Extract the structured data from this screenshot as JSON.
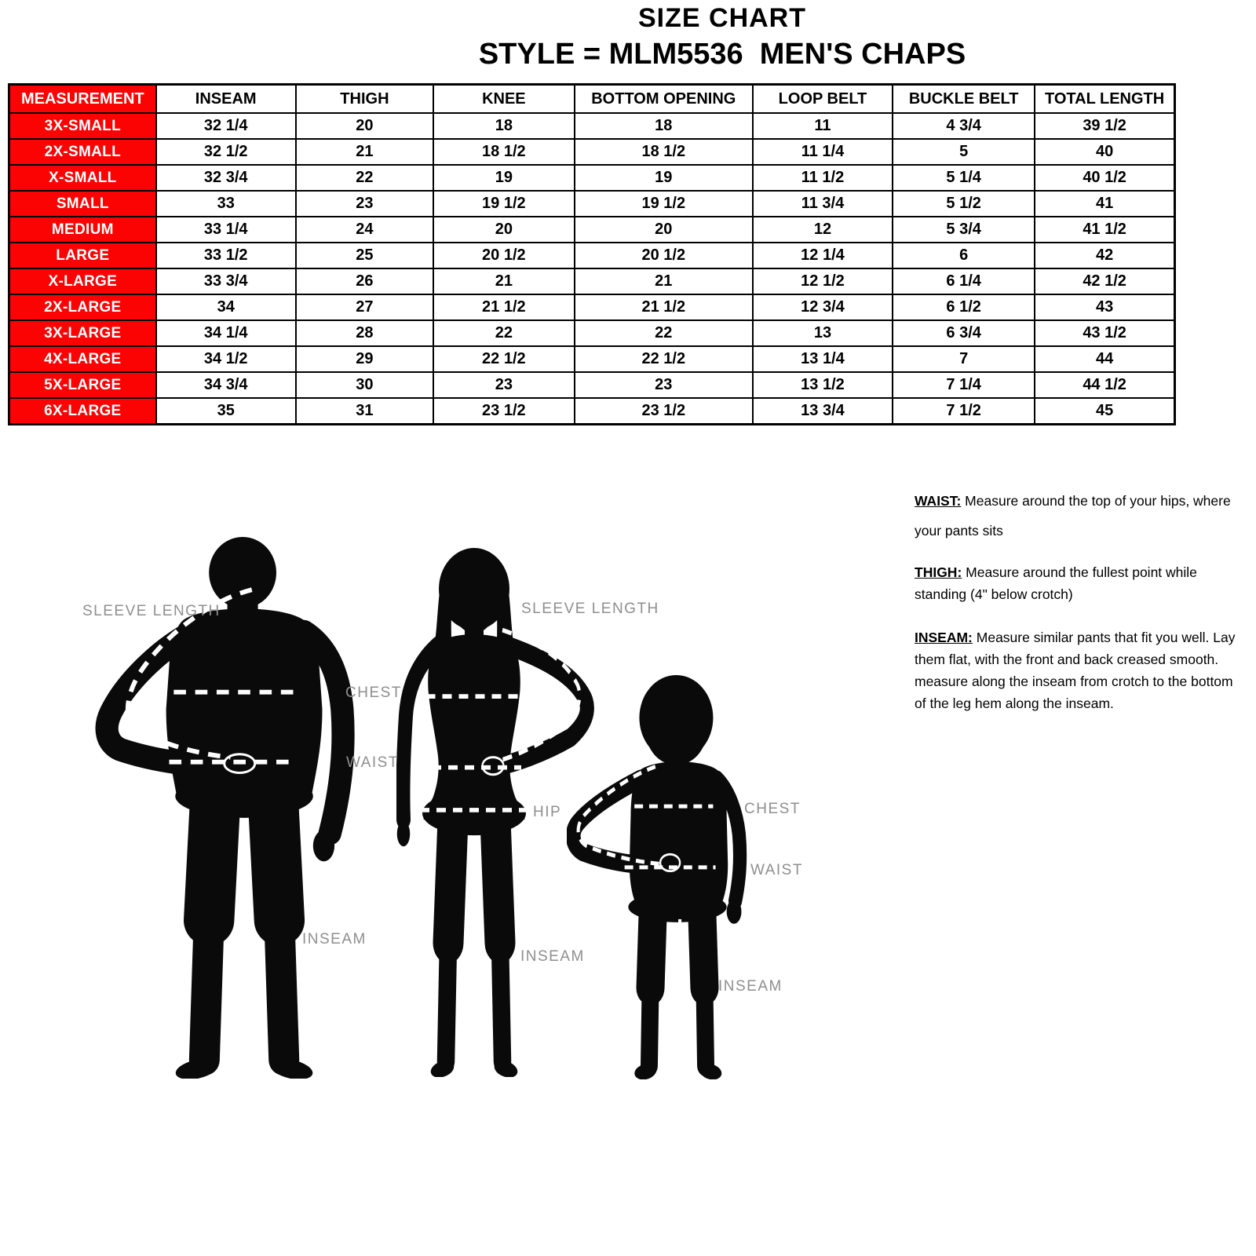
{
  "title": "SIZE CHART",
  "subtitle": "STYLE = MLM5536  MEN'S CHAPS",
  "table": {
    "columns": [
      "MEASUREMENT",
      "INSEAM",
      "THIGH",
      "KNEE",
      "BOTTOM OPENING",
      "LOOP BELT",
      "BUCKLE BELT",
      "TOTAL LENGTH"
    ],
    "rows": [
      {
        "size": "3X-SMALL",
        "values": [
          "32 1/4",
          "20",
          "18",
          "18",
          "11",
          "4 3/4",
          "39 1/2"
        ]
      },
      {
        "size": "2X-SMALL",
        "values": [
          "32 1/2",
          "21",
          "18 1/2",
          "18 1/2",
          "11 1/4",
          "5",
          "40"
        ]
      },
      {
        "size": "X-SMALL",
        "values": [
          "32 3/4",
          "22",
          "19",
          "19",
          "11 1/2",
          "5 1/4",
          "40 1/2"
        ]
      },
      {
        "size": "SMALL",
        "values": [
          "33",
          "23",
          "19 1/2",
          "19 1/2",
          "11 3/4",
          "5 1/2",
          "41"
        ]
      },
      {
        "size": "MEDIUM",
        "values": [
          "33 1/4",
          "24",
          "20",
          "20",
          "12",
          "5 3/4",
          "41 1/2"
        ]
      },
      {
        "size": "LARGE",
        "values": [
          "33 1/2",
          "25",
          "20 1/2",
          "20 1/2",
          "12 1/4",
          "6",
          "42"
        ]
      },
      {
        "size": "X-LARGE",
        "values": [
          "33 3/4",
          "26",
          "21",
          "21",
          "12 1/2",
          "6 1/4",
          "42 1/2"
        ]
      },
      {
        "size": "2X-LARGE",
        "values": [
          "34",
          "27",
          "21 1/2",
          "21 1/2",
          "12 3/4",
          "6 1/2",
          "43"
        ]
      },
      {
        "size": "3X-LARGE",
        "values": [
          "34 1/4",
          "28",
          "22",
          "22",
          "13",
          "6 3/4",
          "43 1/2"
        ]
      },
      {
        "size": "4X-LARGE",
        "values": [
          "34 1/2",
          "29",
          "22 1/2",
          "22 1/2",
          "13 1/4",
          "7",
          "44"
        ]
      },
      {
        "size": "5X-LARGE",
        "values": [
          "34 3/4",
          "30",
          "23",
          "23",
          "13 1/2",
          "7 1/4",
          "44 1/2"
        ]
      },
      {
        "size": "6X-LARGE",
        "values": [
          "35",
          "31",
          "23 1/2",
          "23 1/2",
          "13 3/4",
          "7 1/2",
          "45"
        ]
      }
    ]
  },
  "diagram": {
    "man": {
      "sleeve_label": "SLEEVE LENGTH",
      "chest_label": "CHEST",
      "waist_label": "WAIST",
      "inseam_label": "INSEAM"
    },
    "woman": {
      "sleeve_label": "SLEEVE LENGTH",
      "hip_label": "HIP",
      "inseam_label": "INSEAM"
    },
    "child": {
      "chest_label": "CHEST",
      "waist_label": "WAIST",
      "inseam_label": "INSEAM"
    }
  },
  "instructions": [
    {
      "id": "waist",
      "term": "WAIST:",
      "text": " Measure around the top of  your hips, where your pants sits"
    },
    {
      "id": "thigh",
      "term": "THIGH:",
      "text": " Measure around the fullest point while standing (4\" below crotch)"
    },
    {
      "id": "inseam",
      "term": "INSEAM:",
      "text": " Measure similar pants that fit you well. Lay them flat, with the front and back creased smooth. measure along the inseam from crotch to the bottom of the leg hem along the inseam."
    }
  ],
  "colors": {
    "accent_red": "#fb0303",
    "label_gray": "#8f8f8f",
    "silhouette_black": "#0a0a0a"
  }
}
